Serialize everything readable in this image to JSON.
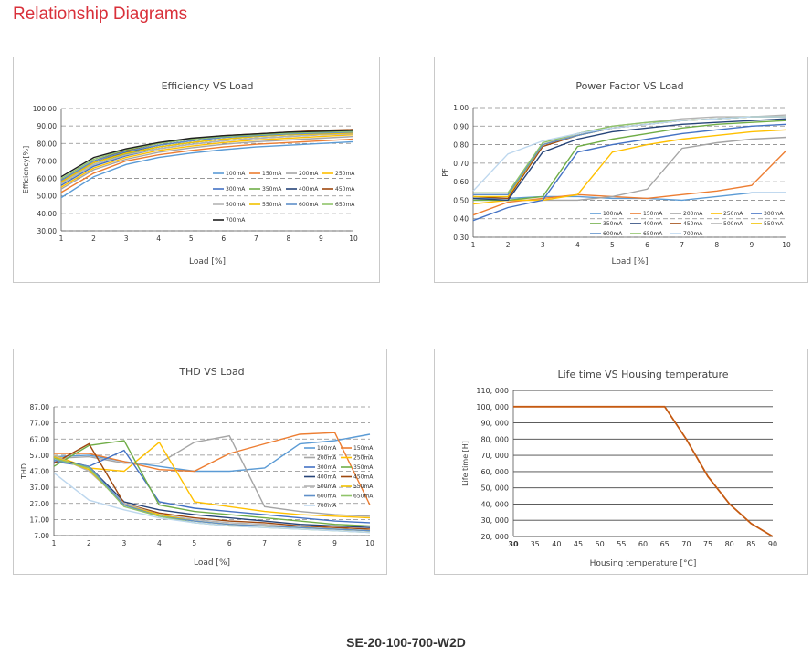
{
  "page": {
    "title": "Relationship Diagrams",
    "model": "SE-20-100-700-W2D"
  },
  "chart_data": [
    {
      "type": "line",
      "title": "Efficiency VS Load",
      "xlabel": "Load [%]",
      "ylabel": "Efficiency[%]",
      "x": [
        1,
        2,
        3,
        4,
        5,
        6,
        7,
        8,
        9,
        10
      ],
      "xlim": [
        1,
        10
      ],
      "ylim": [
        30,
        100
      ],
      "yticks": [
        "30.00",
        "40.00",
        "50.00",
        "60.00",
        "70.00",
        "80.00",
        "90.00",
        "100.00"
      ],
      "grid": "horizontal dashed",
      "legend_position": "center",
      "series": [
        {
          "name": "100mA",
          "color": "#5b9bd5",
          "values": [
            49,
            61,
            68,
            72,
            74.5,
            76.5,
            78,
            79,
            80,
            81
          ]
        },
        {
          "name": "150mA",
          "color": "#ed7d31",
          "values": [
            52,
            63,
            70,
            73.5,
            76,
            78,
            79.5,
            80.5,
            81.5,
            82.5
          ]
        },
        {
          "name": "200mA",
          "color": "#a5a5a5",
          "values": [
            54,
            65,
            71,
            75,
            77.5,
            79.5,
            81,
            82,
            83,
            84
          ]
        },
        {
          "name": "250mA",
          "color": "#ffc000",
          "values": [
            55,
            66,
            72,
            76,
            78.5,
            80.5,
            82,
            83,
            84,
            85
          ]
        },
        {
          "name": "300mA",
          "color": "#4472c4",
          "values": [
            56,
            67,
            73,
            77,
            79.5,
            81.5,
            83,
            84,
            85,
            86
          ]
        },
        {
          "name": "350mA",
          "color": "#70ad47",
          "values": [
            57,
            68,
            74,
            78,
            80.5,
            82.5,
            84,
            85,
            86,
            87
          ]
        },
        {
          "name": "400mA",
          "color": "#264478",
          "values": [
            58,
            69,
            75,
            79,
            81.5,
            83.5,
            85,
            86,
            87,
            88
          ]
        },
        {
          "name": "450mA",
          "color": "#9e480e",
          "values": [
            59,
            70,
            76,
            80,
            82.5,
            84.5,
            85.5,
            86.5,
            87.5,
            88
          ]
        },
        {
          "name": "500mA",
          "color": "#b4b4b4",
          "values": [
            57,
            68,
            73.5,
            77,
            79.5,
            81.5,
            83,
            84,
            85,
            85.5
          ]
        },
        {
          "name": "550mA",
          "color": "#f2c200",
          "values": [
            58,
            69,
            74.5,
            78,
            80.5,
            82.5,
            84,
            85,
            85.5,
            86
          ]
        },
        {
          "name": "600mA",
          "color": "#5f8fc9",
          "values": [
            59,
            70,
            75.5,
            79,
            81.5,
            83.5,
            84.5,
            85.5,
            86,
            86.5
          ]
        },
        {
          "name": "650mA",
          "color": "#8fc46a",
          "values": [
            60,
            71,
            76.5,
            80,
            82.5,
            84,
            85,
            86,
            86.5,
            87
          ]
        },
        {
          "name": "700mA",
          "color": "#1f1f1f",
          "values": [
            61,
            72,
            77,
            80.5,
            83,
            84.5,
            85.5,
            86.5,
            87,
            87.5
          ]
        }
      ]
    },
    {
      "type": "line",
      "title": "Power Factor VS Load",
      "xlabel": "Load [%]",
      "ylabel": "PF",
      "x": [
        1,
        2,
        3,
        4,
        5,
        6,
        7,
        8,
        9,
        10
      ],
      "xlim": [
        1,
        10
      ],
      "ylim": [
        0.3,
        1.0
      ],
      "yticks": [
        "0.30",
        "0.40",
        "0.50",
        "0.60",
        "0.70",
        "0.80",
        "0.90",
        "1.00"
      ],
      "grid": "horizontal dashed",
      "legend_position": "bottom",
      "series": [
        {
          "name": "100mA",
          "color": "#5b9bd5",
          "values": [
            0.51,
            0.51,
            0.52,
            0.52,
            0.51,
            0.51,
            0.5,
            0.52,
            0.54,
            0.54
          ]
        },
        {
          "name": "150mA",
          "color": "#ed7d31",
          "values": [
            0.42,
            0.49,
            0.51,
            0.53,
            0.52,
            0.51,
            0.53,
            0.55,
            0.58,
            0.77
          ]
        },
        {
          "name": "200mA",
          "color": "#a5a5a5",
          "values": [
            0.5,
            0.5,
            0.5,
            0.5,
            0.52,
            0.56,
            0.78,
            0.81,
            0.83,
            0.84
          ]
        },
        {
          "name": "250mA",
          "color": "#ffc000",
          "values": [
            0.48,
            0.5,
            0.5,
            0.53,
            0.76,
            0.8,
            0.83,
            0.85,
            0.87,
            0.88
          ]
        },
        {
          "name": "300mA",
          "color": "#4472c4",
          "values": [
            0.39,
            0.46,
            0.5,
            0.76,
            0.8,
            0.83,
            0.86,
            0.88,
            0.9,
            0.91
          ]
        },
        {
          "name": "350mA",
          "color": "#70ad47",
          "values": [
            0.5,
            0.5,
            0.52,
            0.79,
            0.83,
            0.86,
            0.89,
            0.91,
            0.92,
            0.93
          ]
        },
        {
          "name": "400mA",
          "color": "#264478",
          "values": [
            0.51,
            0.5,
            0.76,
            0.83,
            0.87,
            0.89,
            0.91,
            0.92,
            0.93,
            0.94
          ]
        },
        {
          "name": "450mA",
          "color": "#9e480e",
          "values": [
            0.52,
            0.51,
            0.79,
            0.85,
            0.89,
            0.91,
            0.93,
            0.94,
            0.95,
            0.95
          ]
        },
        {
          "name": "500mA",
          "color": "#b4b4b4",
          "values": [
            0.53,
            0.53,
            0.8,
            0.86,
            0.9,
            0.92,
            0.94,
            0.95,
            0.95,
            0.96
          ]
        },
        {
          "name": "550mA",
          "color": "#f2c200",
          "values": [
            0.52,
            0.52,
            0.8,
            0.85,
            0.89,
            0.91,
            0.93,
            0.94,
            0.95,
            0.95
          ]
        },
        {
          "name": "600mA",
          "color": "#5f8fc9",
          "values": [
            0.53,
            0.53,
            0.8,
            0.85,
            0.89,
            0.91,
            0.93,
            0.94,
            0.95,
            0.95
          ]
        },
        {
          "name": "650mA",
          "color": "#8fc46a",
          "values": [
            0.54,
            0.54,
            0.81,
            0.86,
            0.9,
            0.92,
            0.93,
            0.94,
            0.95,
            0.95
          ]
        },
        {
          "name": "700mA",
          "color": "#bdd7ee",
          "values": [
            0.55,
            0.75,
            0.82,
            0.86,
            0.89,
            0.91,
            0.93,
            0.94,
            0.95,
            0.95
          ]
        }
      ]
    },
    {
      "type": "line",
      "title": "THD VS Load",
      "xlabel": "Load [%]",
      "ylabel": "THD",
      "x": [
        1,
        2,
        3,
        4,
        5,
        6,
        7,
        8,
        9,
        10
      ],
      "xlim": [
        1,
        10
      ],
      "ylim": [
        7,
        87
      ],
      "yticks": [
        "7.00",
        "17.00",
        "27.00",
        "37.00",
        "47.00",
        "57.00",
        "67.00",
        "77.00",
        "87.00"
      ],
      "grid": "horizontal dashed",
      "legend_position": "right",
      "series": [
        {
          "name": "100mA",
          "color": "#5b9bd5",
          "values": [
            56,
            57,
            53,
            50,
            47,
            47,
            49,
            64,
            66,
            70
          ]
        },
        {
          "name": "150mA",
          "color": "#ed7d31",
          "values": [
            58,
            58,
            53,
            48,
            47,
            58,
            64,
            70,
            71,
            26
          ]
        },
        {
          "name": "200mA",
          "color": "#a5a5a5",
          "values": [
            55,
            56,
            52,
            52,
            65,
            69,
            25,
            22,
            20,
            19
          ]
        },
        {
          "name": "250mA",
          "color": "#ffc000",
          "values": [
            57,
            49,
            47,
            65,
            28,
            25,
            22,
            20,
            19,
            18
          ]
        },
        {
          "name": "300mA",
          "color": "#4472c4",
          "values": [
            53,
            50,
            60,
            28,
            24,
            22,
            20,
            18,
            16,
            15
          ]
        },
        {
          "name": "350mA",
          "color": "#70ad47",
          "values": [
            50,
            63,
            66,
            26,
            22,
            20,
            18,
            16,
            14,
            13
          ]
        },
        {
          "name": "400mA",
          "color": "#264478",
          "values": [
            55,
            50,
            28,
            23,
            20,
            18,
            16,
            14,
            13,
            12
          ]
        },
        {
          "name": "450mA",
          "color": "#9e480e",
          "values": [
            52,
            64,
            27,
            21,
            18,
            16,
            15,
            13,
            12,
            11
          ]
        },
        {
          "name": "500mA",
          "color": "#b4b4b4",
          "values": [
            57,
            47,
            27,
            20,
            17,
            15,
            14,
            12,
            11,
            10
          ]
        },
        {
          "name": "550mA",
          "color": "#f2c200",
          "values": [
            56,
            48,
            26,
            20,
            16,
            14,
            13,
            12,
            11,
            10
          ]
        },
        {
          "name": "600mA",
          "color": "#5f8fc9",
          "values": [
            54,
            50,
            26,
            19,
            16,
            14,
            13,
            12,
            11,
            10
          ]
        },
        {
          "name": "650mA",
          "color": "#8fc46a",
          "values": [
            55,
            49,
            25,
            19,
            15,
            13,
            12,
            11,
            10,
            9
          ]
        },
        {
          "name": "700mA",
          "color": "#bdd7ee",
          "values": [
            46,
            29,
            23,
            18,
            15,
            13,
            12,
            11,
            10,
            9
          ]
        }
      ]
    },
    {
      "type": "line",
      "title": "Life time VS Housing temperature",
      "xlabel": "Housing temperature [°C]",
      "ylabel": "Life time [H]",
      "x": [
        30,
        35,
        40,
        45,
        50,
        55,
        60,
        65,
        70,
        75,
        80,
        85,
        90
      ],
      "xticks": [
        "30",
        "35",
        "40",
        "45",
        "50",
        "55",
        "60",
        "65",
        "70",
        "75",
        "80",
        "85",
        "90"
      ],
      "xlim": [
        30,
        90
      ],
      "ylim": [
        20000,
        110000
      ],
      "yticks": [
        "20, 000",
        "30, 000",
        "40, 000",
        "50, 000",
        "60, 000",
        "70, 000",
        "80, 000",
        "90, 000",
        "100, 000",
        "110, 000"
      ],
      "grid": "horizontal solid",
      "series": [
        {
          "color": "#c55a11",
          "values": [
            100000,
            100000,
            100000,
            100000,
            100000,
            100000,
            100000,
            100000,
            80000,
            57000,
            40000,
            28000,
            20000
          ]
        }
      ]
    }
  ]
}
